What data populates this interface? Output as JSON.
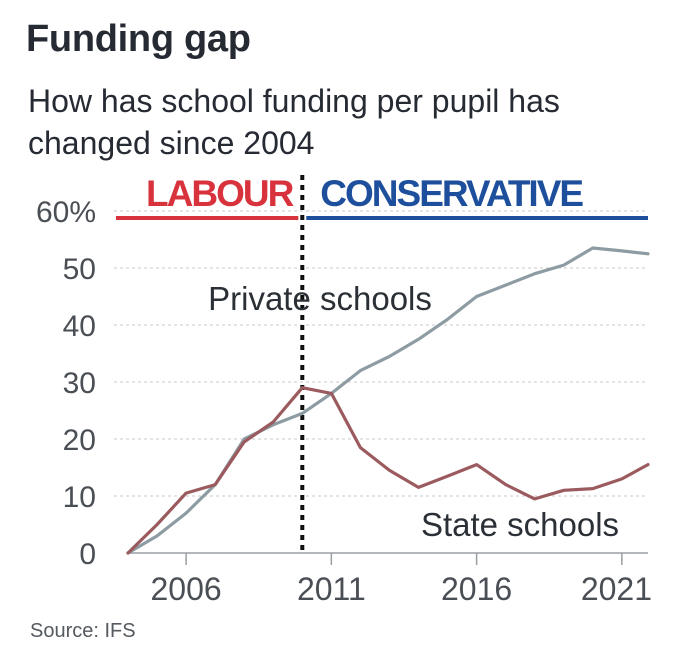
{
  "header": {
    "title": "Funding gap",
    "subtitle": "How has school funding per pupil has changed since 2004"
  },
  "footer": {
    "source": "Source: IFS"
  },
  "colors": {
    "labour": "#d8323c",
    "conservative": "#1d4f9c",
    "private": "#8d9ca3",
    "state": "#9b5b5e",
    "grid": "#c9c9c9",
    "axis_text": "#4a4e55"
  },
  "chart_data": {
    "type": "line",
    "title": "Funding gap",
    "subtitle": "How has school funding per pupil has changed since 2004",
    "xlabel": "",
    "ylabel": "",
    "xlim": [
      2004,
      2021.9
    ],
    "ylim": [
      0,
      60
    ],
    "y_ticks": [
      0,
      10,
      20,
      30,
      40,
      50,
      60
    ],
    "y_tick_labels": [
      "0",
      "10",
      "20",
      "30",
      "40",
      "50",
      "60%"
    ],
    "x_ticks": [
      2006,
      2011,
      2016,
      2021
    ],
    "x_tick_labels": [
      "2006",
      "2011",
      "2016",
      "2021"
    ],
    "grid": true,
    "periods": [
      {
        "label": "LABOUR",
        "from": 2004,
        "to": 2010,
        "color": "#d8323c"
      },
      {
        "label": "CONSERVATIVE",
        "from": 2010,
        "to": 2021.9,
        "color": "#1d4f9c"
      }
    ],
    "divider_x": 2010,
    "series": [
      {
        "name": "Private schools",
        "color": "#8d9ca3",
        "x": [
          2004,
          2005,
          2006,
          2007,
          2008,
          2009,
          2010,
          2011,
          2012,
          2013,
          2014,
          2015,
          2016,
          2017,
          2018,
          2019,
          2020,
          2021,
          2021.9
        ],
        "values": [
          0,
          3,
          7,
          12,
          20,
          22.5,
          24.5,
          28,
          32,
          34.5,
          37.5,
          41,
          45,
          47,
          49,
          50.5,
          53.5,
          53,
          52.5
        ]
      },
      {
        "name": "State schools",
        "color": "#9b5b5e",
        "x": [
          2004,
          2005,
          2006,
          2007,
          2008,
          2009,
          2010,
          2011,
          2012,
          2013,
          2014,
          2015,
          2016,
          2017,
          2018,
          2019,
          2020,
          2021,
          2021.9
        ],
        "values": [
          0,
          5,
          10.5,
          12,
          19.5,
          23,
          29,
          28,
          18.5,
          14.5,
          11.5,
          13.5,
          15.5,
          12,
          9.5,
          11,
          11.3,
          13,
          15.5
        ]
      }
    ]
  }
}
